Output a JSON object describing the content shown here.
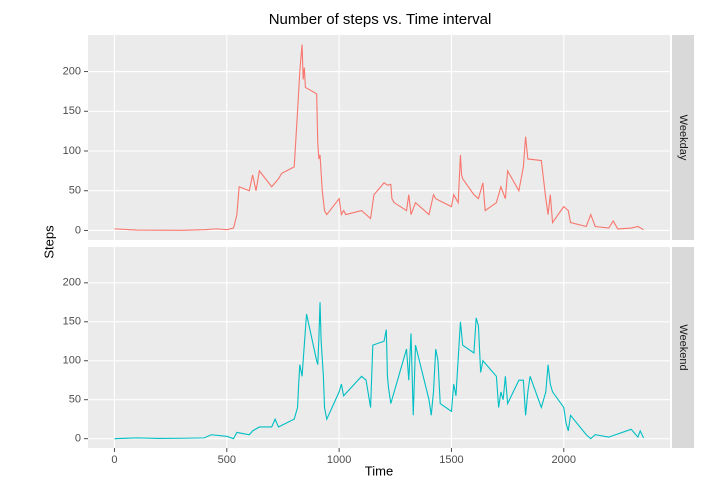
{
  "chart_data": [
    {
      "type": "line",
      "title": "Number of steps vs. Time interval",
      "ylabel": "Steps",
      "facet": "Weekday",
      "x": [
        0,
        100,
        200,
        300,
        400,
        455,
        500,
        530,
        545,
        555,
        600,
        615,
        630,
        645,
        700,
        715,
        730,
        745,
        800,
        815,
        825,
        835,
        840,
        845,
        850,
        900,
        905,
        910,
        915,
        925,
        935,
        945,
        1000,
        1010,
        1020,
        1030,
        1100,
        1140,
        1155,
        1200,
        1215,
        1230,
        1235,
        1245,
        1300,
        1310,
        1320,
        1340,
        1400,
        1420,
        1430,
        1500,
        1510,
        1530,
        1540,
        1545,
        1550,
        1600,
        1620,
        1640,
        1650,
        1700,
        1720,
        1740,
        1750,
        1800,
        1820,
        1830,
        1840,
        1900,
        1920,
        1930,
        1940,
        1950,
        2000,
        2020,
        2030,
        2100,
        2120,
        2140,
        2200,
        2220,
        2240,
        2300,
        2330,
        2355
      ],
      "series": [
        {
          "color": "#f8766d",
          "values": [
            2,
            0.5,
            0.3,
            0.2,
            1,
            2,
            1,
            3,
            20,
            55,
            50,
            70,
            50,
            75,
            55,
            60,
            65,
            72,
            80,
            150,
            200,
            234,
            190,
            205,
            180,
            172,
            110,
            90,
            95,
            50,
            25,
            20,
            40,
            20,
            25,
            20,
            25,
            15,
            45,
            60,
            57,
            58,
            40,
            35,
            25,
            45,
            20,
            35,
            20,
            45,
            40,
            30,
            45,
            35,
            95,
            70,
            65,
            45,
            40,
            60,
            25,
            35,
            55,
            40,
            75,
            50,
            80,
            118,
            90,
            88,
            40,
            20,
            45,
            10,
            30,
            25,
            10,
            5,
            20,
            5,
            3,
            12,
            2,
            3,
            5,
            1
          ]
        }
      ],
      "xlim": [
        -117.75,
        2472.75
      ],
      "xticks": [
        0,
        500,
        1000,
        1500,
        2000
      ],
      "ylim": [
        -12,
        246
      ],
      "yticks": [
        0,
        50,
        100,
        150,
        200
      ],
      "grid": true,
      "panel_color": "#ebebeb",
      "strip_color": "#d9d9d9"
    },
    {
      "type": "line",
      "xlabel": "Time",
      "facet": "Weekend",
      "x": [
        0,
        100,
        200,
        300,
        400,
        430,
        500,
        530,
        545,
        600,
        615,
        645,
        700,
        715,
        730,
        800,
        815,
        820,
        825,
        835,
        845,
        855,
        900,
        905,
        910,
        915,
        920,
        930,
        935,
        945,
        1000,
        1010,
        1020,
        1100,
        1120,
        1140,
        1150,
        1200,
        1210,
        1215,
        1220,
        1230,
        1300,
        1310,
        1320,
        1330,
        1340,
        1400,
        1410,
        1420,
        1430,
        1440,
        1450,
        1500,
        1510,
        1520,
        1540,
        1550,
        1600,
        1610,
        1620,
        1630,
        1640,
        1700,
        1710,
        1720,
        1730,
        1740,
        1750,
        1800,
        1820,
        1830,
        1840,
        1850,
        1900,
        1910,
        1920,
        1930,
        1940,
        1950,
        2000,
        2010,
        2020,
        2030,
        2100,
        2120,
        2140,
        2200,
        2300,
        2330,
        2340,
        2355
      ],
      "series": [
        {
          "color": "#00bfc4",
          "values": [
            0,
            1,
            0.3,
            0.5,
            1,
            5,
            3,
            0,
            8,
            5,
            10,
            15,
            15,
            25,
            15,
            25,
            40,
            70,
            95,
            80,
            120,
            160,
            100,
            95,
            130,
            175,
            125,
            80,
            40,
            25,
            60,
            70,
            55,
            80,
            75,
            40,
            120,
            125,
            140,
            80,
            65,
            45,
            115,
            75,
            135,
            30,
            120,
            50,
            30,
            60,
            115,
            100,
            45,
            35,
            70,
            55,
            150,
            120,
            110,
            155,
            145,
            85,
            100,
            80,
            40,
            60,
            50,
            80,
            45,
            75,
            75,
            30,
            60,
            80,
            40,
            50,
            60,
            95,
            70,
            60,
            40,
            20,
            10,
            30,
            5,
            0,
            5,
            2,
            12,
            2,
            10,
            1
          ]
        }
      ],
      "xlim": [
        -117.75,
        2472.75
      ],
      "xticks": [
        0,
        500,
        1000,
        1500,
        2000
      ],
      "ylim": [
        -12,
        246
      ],
      "yticks": [
        0,
        50,
        100,
        150,
        200
      ],
      "grid": true,
      "panel_color": "#ebebeb",
      "strip_color": "#d9d9d9"
    }
  ]
}
